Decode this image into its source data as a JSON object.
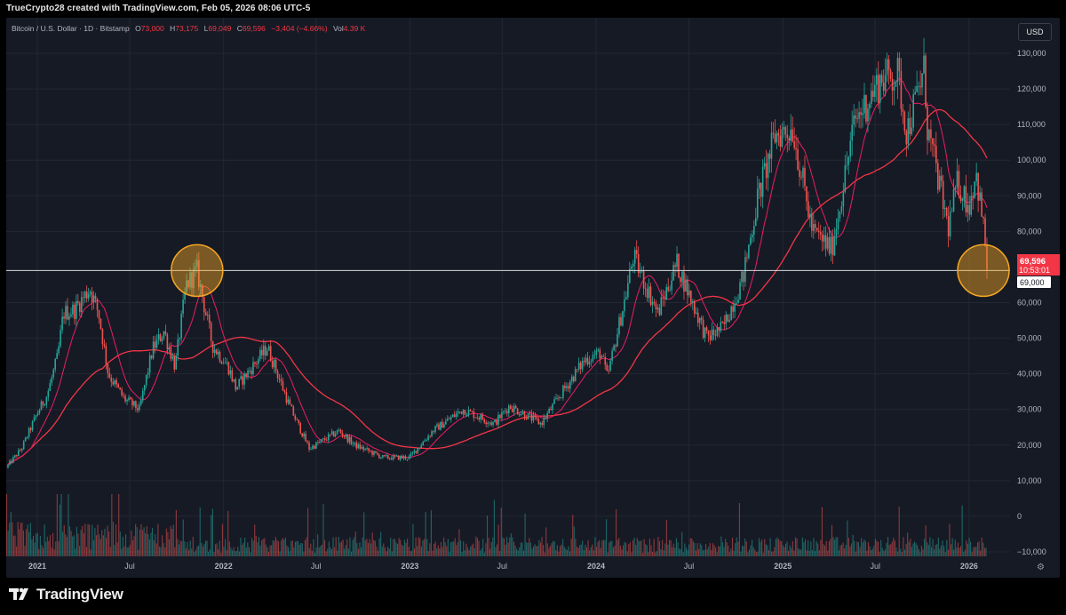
{
  "credit": "TrueCrypto28 created with TradingView.com, Feb 05, 2026 08:06 UTC-5",
  "legend": {
    "symbol": "Bitcoin / U.S. Dollar · 1D · Bitstamp",
    "o_label": "O",
    "o_value": "73,000",
    "h_label": "H",
    "h_value": "73,175",
    "l_label": "L",
    "l_value": "69,049",
    "c_label": "C",
    "c_value": "69,596",
    "change": "−3,404 (−4.66%)",
    "vol_label": "Vol",
    "vol_value": "4.39 K"
  },
  "currency_button": "USD",
  "price_tag": {
    "price": "69,596",
    "countdown": "10:53:01",
    "level": "69,000"
  },
  "brand": "TradingView",
  "colors": {
    "up": "#26a69a",
    "down": "#ef5350",
    "ma_fast": "#e91e63",
    "ma_slow": "#f23645",
    "highlight": "#f5a623",
    "background": "#161a25"
  },
  "chart_data": {
    "type": "candlestick",
    "timeframe": "1D",
    "x_ticks": [
      "2021",
      "Jul",
      "2022",
      "Jul",
      "2023",
      "Jul",
      "2024",
      "Jul",
      "2025",
      "Jul",
      "2026"
    ],
    "y_ticks": [
      "130,000",
      "120,000",
      "110,000",
      "100,000",
      "90,000",
      "80,000",
      "60,000",
      "50,000",
      "40,000",
      "30,000",
      "20,000",
      "10,000",
      "0",
      "−10,000"
    ],
    "ylim": [
      -10000,
      130000
    ],
    "horizontal_line": 69000,
    "highlights": [
      {
        "date": "2021-11",
        "price": 69000
      },
      {
        "date": "2026-02",
        "price": 69000
      }
    ],
    "price_series": {
      "name": "BTCUSD",
      "points": [
        [
          "2020-11-01",
          13700
        ],
        [
          "2020-12-01",
          19000
        ],
        [
          "2021-01-01",
          29000
        ],
        [
          "2021-01-20",
          34000
        ],
        [
          "2021-02-10",
          45000
        ],
        [
          "2021-02-21",
          57000
        ],
        [
          "2021-03-15",
          58000
        ],
        [
          "2021-04-14",
          64000
        ],
        [
          "2021-05-01",
          57000
        ],
        [
          "2021-05-20",
          40000
        ],
        [
          "2021-06-20",
          33000
        ],
        [
          "2021-07-20",
          30000
        ],
        [
          "2021-08-15",
          47000
        ],
        [
          "2021-09-06",
          52000
        ],
        [
          "2021-09-28",
          42000
        ],
        [
          "2021-10-20",
          65000
        ],
        [
          "2021-11-10",
          69000
        ],
        [
          "2021-12-10",
          48000
        ],
        [
          "2022-01-10",
          42000
        ],
        [
          "2022-01-25",
          36000
        ],
        [
          "2022-03-28",
          47500
        ],
        [
          "2022-05-10",
          31000
        ],
        [
          "2022-06-18",
          19000
        ],
        [
          "2022-08-15",
          24000
        ],
        [
          "2022-09-15",
          20000
        ],
        [
          "2022-11-10",
          16500
        ],
        [
          "2022-12-31",
          16500
        ],
        [
          "2023-02-15",
          24000
        ],
        [
          "2023-04-15",
          30000
        ],
        [
          "2023-06-15",
          26000
        ],
        [
          "2023-07-15",
          31000
        ],
        [
          "2023-09-15",
          26000
        ],
        [
          "2023-10-25",
          34500
        ],
        [
          "2023-12-10",
          44000
        ],
        [
          "2024-01-10",
          46000
        ],
        [
          "2024-01-23",
          39000
        ],
        [
          "2024-02-28",
          62000
        ],
        [
          "2024-03-14",
          73000
        ],
        [
          "2024-05-01",
          57000
        ],
        [
          "2024-06-07",
          71000
        ],
        [
          "2024-08-05",
          50000
        ],
        [
          "2024-09-06",
          53000
        ],
        [
          "2024-10-15",
          67000
        ],
        [
          "2024-11-12",
          89000
        ],
        [
          "2024-12-17",
          107000
        ],
        [
          "2025-01-20",
          109000
        ],
        [
          "2025-02-28",
          80000
        ],
        [
          "2025-04-07",
          75000
        ],
        [
          "2025-05-22",
          111000
        ],
        [
          "2025-07-14",
          123000
        ],
        [
          "2025-08-14",
          124000
        ],
        [
          "2025-09-01",
          108000
        ],
        [
          "2025-10-06",
          126000
        ],
        [
          "2025-10-10",
          110000
        ],
        [
          "2025-11-21",
          81000
        ],
        [
          "2025-12-10",
          94000
        ],
        [
          "2026-01-01",
          87000
        ],
        [
          "2026-01-14",
          97000
        ],
        [
          "2026-02-01",
          78000
        ],
        [
          "2026-02-05",
          69596
        ]
      ]
    },
    "moving_averages": [
      {
        "name": "fast MA",
        "color": "#e91e63"
      },
      {
        "name": "slow MA",
        "color": "#f23645"
      }
    ],
    "volume": {
      "type": "bar",
      "colors": [
        "#26a69a",
        "#ef5350"
      ]
    }
  }
}
